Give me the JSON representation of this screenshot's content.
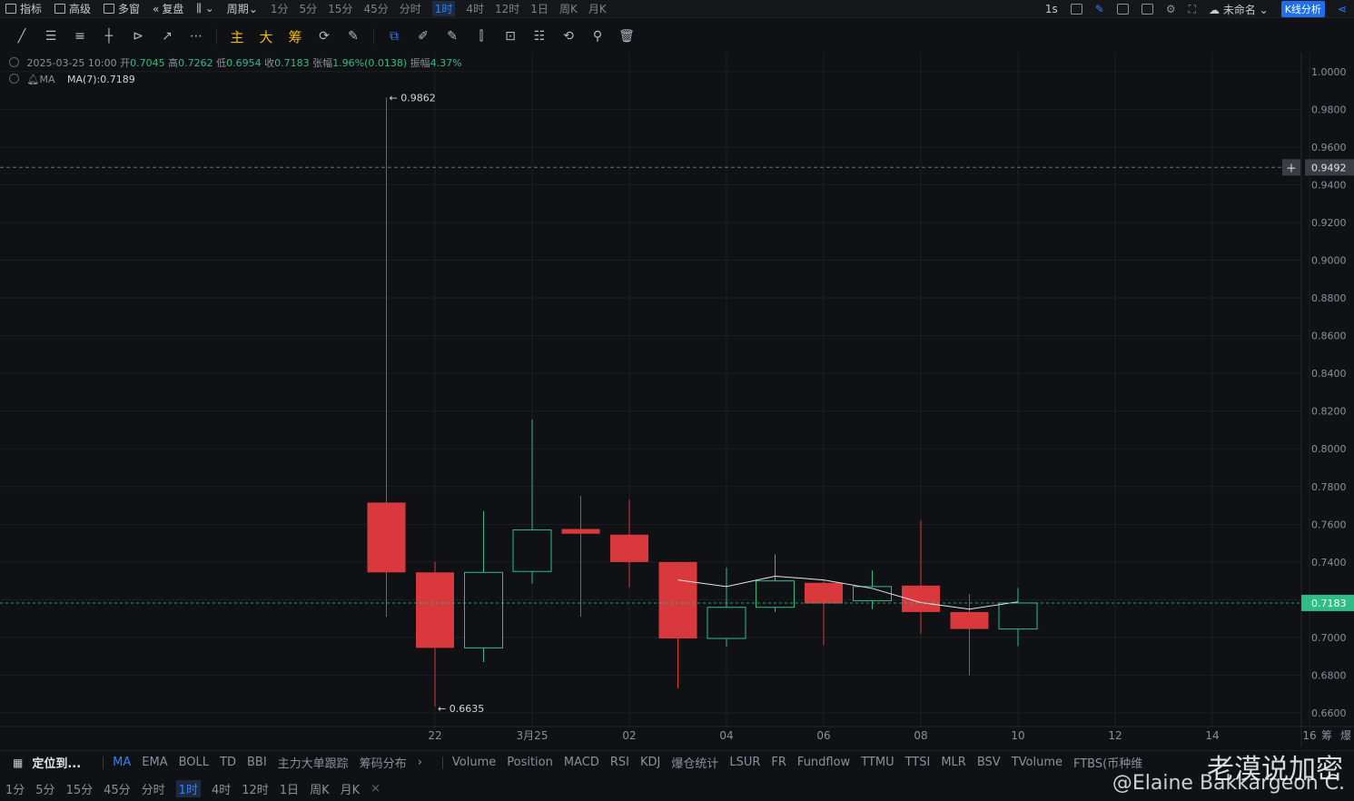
{
  "topbar": {
    "items": [
      "指标",
      "高级",
      "多窗",
      "复盘",
      "周期"
    ],
    "periods": [
      "1分",
      "5分",
      "15分",
      "45分",
      "分时",
      "1时",
      "4时",
      "12时",
      "1日",
      "周K",
      "月K"
    ],
    "active_period": "1时",
    "right": {
      "interval": "1s",
      "name": "未命名",
      "kline_btn": "K线分析"
    }
  },
  "toolbar": {
    "tools": [
      "╱",
      "☰",
      "≡",
      "┼",
      "⊳",
      "↗",
      "⋯"
    ],
    "text_tools": [
      "主",
      "大",
      "筹"
    ],
    "icons": [
      "⟳",
      "✎",
      "⧉",
      "✐",
      "✎",
      "⫿",
      "⊡",
      "☷",
      "⟲",
      "⚲",
      "🗑"
    ]
  },
  "legend": {
    "datetime": "2025-03-25 10:00",
    "open_label": "开",
    "open": "0.7045",
    "high_label": "高",
    "high": "0.7262",
    "low_label": "低",
    "low": "0.6954",
    "close_label": "收",
    "close": "0.7183",
    "chg_label": "张幅",
    "chg": "1.96%(0.0138)",
    "amp_label": "振幅",
    "amp": "4.37%",
    "ma_label": "MA",
    "ma7": "MA(7):0.7189"
  },
  "chart_data": {
    "type": "candlestick",
    "ylim": [
      0.6528,
      1.01
    ],
    "y_ticks": [
      "1.0000",
      "0.9800",
      "0.9600",
      "0.9400",
      "0.9200",
      "0.9000",
      "0.8800",
      "0.8600",
      "0.8400",
      "0.8200",
      "0.8000",
      "0.7800",
      "0.7600",
      "0.7400",
      "0.7200",
      "0.7000",
      "0.6800",
      "0.6600"
    ],
    "x_tick_labels": [
      {
        "label": "22",
        "i": 1
      },
      {
        "label": "3月25",
        "i": 3
      },
      {
        "label": "02",
        "i": 5
      },
      {
        "label": "04",
        "i": 7
      },
      {
        "label": "06",
        "i": 9
      },
      {
        "label": "08",
        "i": 11
      },
      {
        "label": "10",
        "i": 13
      },
      {
        "label": "12",
        "i": 15
      },
      {
        "label": "14",
        "i": 17
      },
      {
        "label": "16",
        "i": 19
      }
    ],
    "candles": [
      {
        "o": 0.7715,
        "h": 0.9862,
        "l": 0.711,
        "c": 0.7345
      },
      {
        "o": 0.7345,
        "h": 0.74,
        "l": 0.6635,
        "c": 0.6945
      },
      {
        "o": 0.6945,
        "h": 0.767,
        "l": 0.687,
        "c": 0.7345
      },
      {
        "o": 0.735,
        "h": 0.8155,
        "l": 0.7285,
        "c": 0.757
      },
      {
        "o": 0.7575,
        "h": 0.775,
        "l": 0.711,
        "c": 0.755
      },
      {
        "o": 0.7545,
        "h": 0.773,
        "l": 0.7265,
        "c": 0.74
      },
      {
        "o": 0.74,
        "h": 0.74,
        "l": 0.673,
        "c": 0.6995
      },
      {
        "o": 0.6995,
        "h": 0.737,
        "l": 0.695,
        "c": 0.716
      },
      {
        "o": 0.716,
        "h": 0.744,
        "l": 0.7135,
        "c": 0.73
      },
      {
        "o": 0.729,
        "h": 0.7305,
        "l": 0.696,
        "c": 0.718
      },
      {
        "o": 0.7195,
        "h": 0.7355,
        "l": 0.715,
        "c": 0.727
      },
      {
        "o": 0.7275,
        "h": 0.762,
        "l": 0.702,
        "c": 0.7135
      },
      {
        "o": 0.7135,
        "h": 0.723,
        "l": 0.68,
        "c": 0.7045
      },
      {
        "o": 0.7045,
        "h": 0.7262,
        "l": 0.6954,
        "c": 0.7183
      }
    ],
    "ma7": [
      null,
      null,
      null,
      null,
      null,
      null,
      0.7305,
      0.727,
      0.7325,
      0.7305,
      0.726,
      0.7185,
      0.715,
      0.7189
    ],
    "high_marker": "← 0.9862",
    "low_marker": "← 0.6635",
    "crosshair_price": "0.9492",
    "crosshair_value": 0.9492,
    "last_price": "0.7183",
    "last_value": 0.7183,
    "right_edge_labels": [
      "筹",
      "爆"
    ],
    "colors": {
      "up": "#2ebd85",
      "down": "#d9393d",
      "ma": "#e8e8e8",
      "grid": "#1c1e23",
      "last": "#2ebd85"
    }
  },
  "indicators": {
    "locate": "定位到...",
    "main": [
      "MA",
      "EMA",
      "BOLL",
      "TD",
      "BBI",
      "主力大单跟踪",
      "筹码分布"
    ],
    "active_main": "MA",
    "sub": [
      "Volume",
      "Position",
      "MACD",
      "RSI",
      "KDJ",
      "爆仓统计",
      "LSUR",
      "FR",
      "Fundflow",
      "TTMU",
      "TTSI",
      "MLR",
      "BSV",
      "TVolume",
      "FTBS(币种维"
    ]
  },
  "periodbar": {
    "periods": [
      "1分",
      "5分",
      "15分",
      "45分",
      "分时",
      "1时",
      "4时",
      "12时",
      "1日",
      "周K",
      "月K"
    ],
    "active": "1时",
    "close": "×"
  },
  "watermark": {
    "line1": "老漠说加密",
    "line2": "@Elaine Bakkargeon C."
  }
}
